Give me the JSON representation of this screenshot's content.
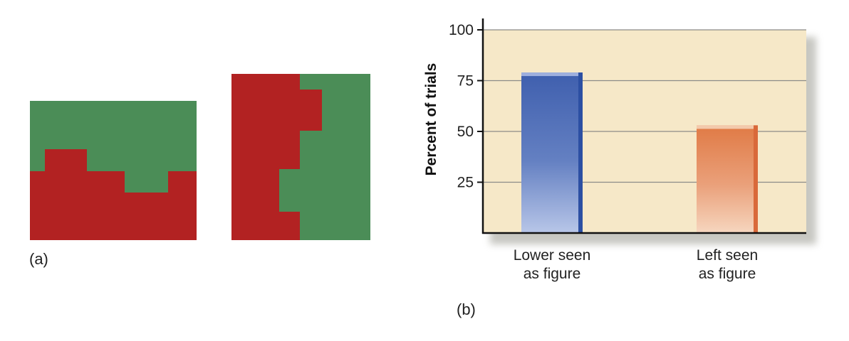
{
  "figure_a": {
    "label": "(a)",
    "colors": {
      "red": "#b22222",
      "green": "#4b8d57"
    }
  },
  "chart_data": {
    "type": "bar",
    "panel_label": "(b)",
    "ylabel": "Percent of trials",
    "xlabel": "",
    "ylim": [
      0,
      100
    ],
    "yticks": [
      25,
      50,
      75,
      100
    ],
    "grid": true,
    "categories": [
      "Lower seen\nas figure",
      "Left seen\nas figure"
    ],
    "values": [
      79,
      53
    ],
    "colors": [
      "#3f5fae",
      "#e07a45"
    ],
    "background": "#f6e8c8"
  }
}
